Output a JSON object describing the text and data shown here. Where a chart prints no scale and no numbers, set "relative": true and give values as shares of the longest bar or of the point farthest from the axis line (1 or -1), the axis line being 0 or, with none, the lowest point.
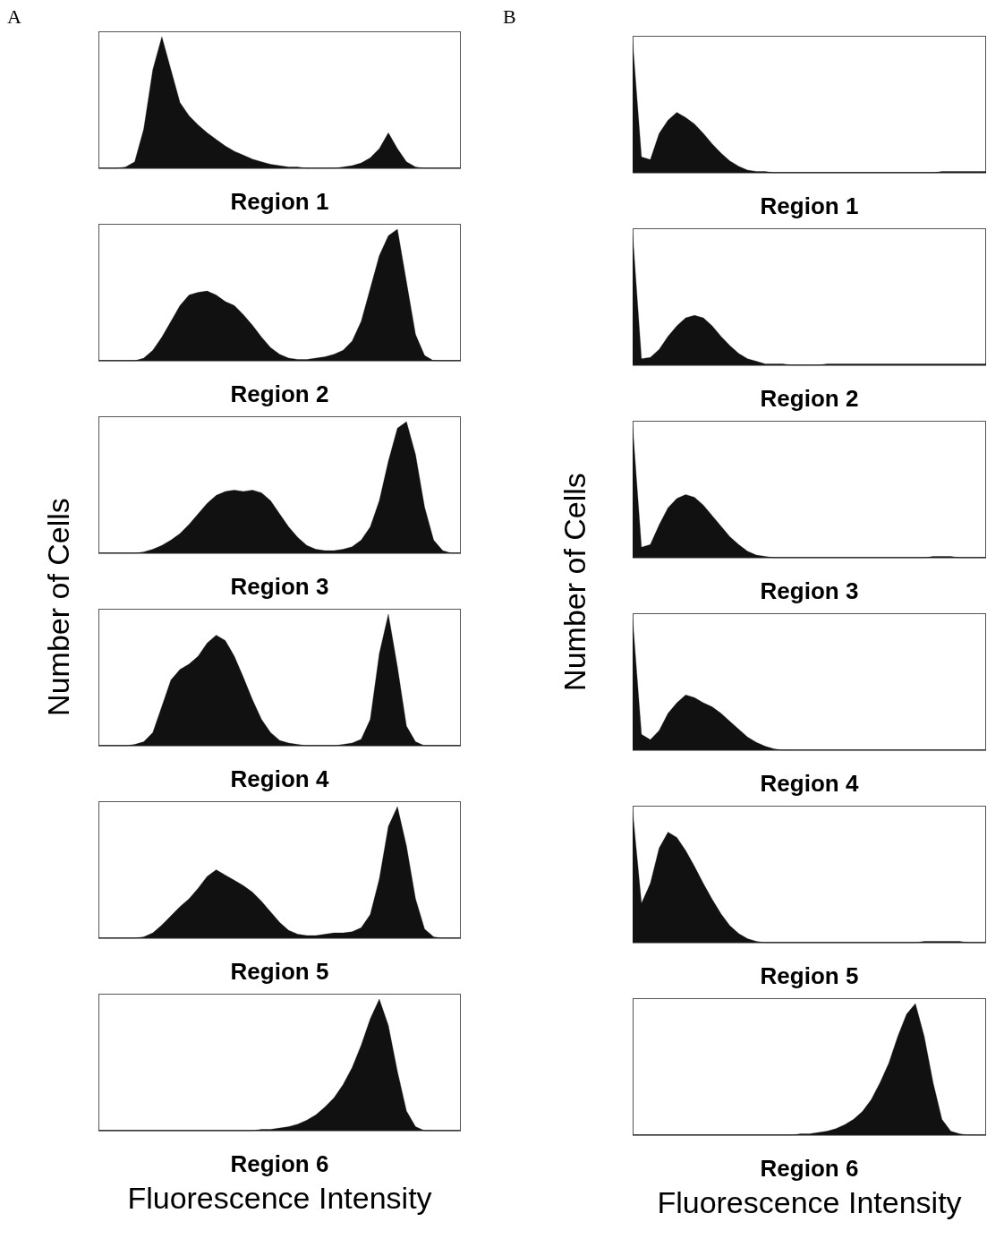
{
  "chart_data": [
    {
      "type": "area",
      "relative": true,
      "title": "Region 1",
      "annotations": [
        "A"
      ],
      "color": "#111111",
      "categories": [
        null,
        null,
        null,
        null,
        null,
        null,
        null,
        null,
        null,
        null,
        null,
        null,
        null,
        null,
        null,
        null,
        null,
        null,
        null,
        null,
        null,
        null,
        null,
        null,
        null,
        null,
        null,
        null,
        null,
        null,
        null,
        null,
        null,
        null,
        null,
        null,
        null,
        null,
        null,
        null,
        null
      ],
      "values": [
        0,
        0,
        0,
        0.01,
        0.05,
        0.3,
        0.75,
        1,
        0.75,
        0.5,
        0.4,
        0.33,
        0.27,
        0.22,
        0.17,
        0.13,
        0.1,
        0.07,
        0.05,
        0.03,
        0.02,
        0.01,
        0.01,
        0,
        0,
        0,
        0,
        0.01,
        0.02,
        0.04,
        0.08,
        0.15,
        0.27,
        0.15,
        0.05,
        0.01,
        0,
        0,
        0,
        0,
        0
      ]
    },
    {
      "type": "area",
      "relative": true,
      "title": "Region 2",
      "color": "#111111",
      "categories": [
        null,
        null,
        null,
        null,
        null,
        null,
        null,
        null,
        null,
        null,
        null,
        null,
        null,
        null,
        null,
        null,
        null,
        null,
        null,
        null,
        null,
        null,
        null,
        null,
        null,
        null,
        null,
        null,
        null,
        null,
        null,
        null,
        null,
        null,
        null,
        null,
        null,
        null,
        null,
        null,
        null
      ],
      "values": [
        0,
        0,
        0,
        0,
        0,
        0.02,
        0.08,
        0.18,
        0.3,
        0.42,
        0.5,
        0.52,
        0.53,
        0.5,
        0.45,
        0.42,
        0.35,
        0.27,
        0.18,
        0.1,
        0.05,
        0.02,
        0.01,
        0.01,
        0.02,
        0.03,
        0.05,
        0.08,
        0.15,
        0.3,
        0.55,
        0.8,
        0.95,
        1,
        0.6,
        0.2,
        0.04,
        0,
        0,
        0,
        0
      ]
    },
    {
      "type": "area",
      "relative": true,
      "title": "Region 3",
      "ylabel": "Number of Cells",
      "color": "#111111",
      "categories": [
        null,
        null,
        null,
        null,
        null,
        null,
        null,
        null,
        null,
        null,
        null,
        null,
        null,
        null,
        null,
        null,
        null,
        null,
        null,
        null,
        null,
        null,
        null,
        null,
        null,
        null,
        null,
        null,
        null,
        null,
        null,
        null,
        null,
        null,
        null,
        null,
        null,
        null,
        null,
        null,
        null
      ],
      "values": [
        0,
        0,
        0,
        0,
        0,
        0.01,
        0.03,
        0.06,
        0.1,
        0.15,
        0.22,
        0.3,
        0.38,
        0.44,
        0.47,
        0.48,
        0.47,
        0.48,
        0.46,
        0.4,
        0.3,
        0.2,
        0.12,
        0.06,
        0.03,
        0.02,
        0.02,
        0.03,
        0.05,
        0.1,
        0.2,
        0.4,
        0.7,
        0.95,
        1,
        0.75,
        0.35,
        0.1,
        0.02,
        0,
        0
      ]
    },
    {
      "type": "area",
      "relative": true,
      "title": "Region 4",
      "color": "#111111",
      "categories": [
        null,
        null,
        null,
        null,
        null,
        null,
        null,
        null,
        null,
        null,
        null,
        null,
        null,
        null,
        null,
        null,
        null,
        null,
        null,
        null,
        null,
        null,
        null,
        null,
        null,
        null,
        null,
        null,
        null,
        null,
        null,
        null,
        null,
        null,
        null,
        null,
        null,
        null,
        null,
        null,
        null
      ],
      "values": [
        0,
        0,
        0,
        0,
        0.01,
        0.03,
        0.1,
        0.3,
        0.5,
        0.58,
        0.62,
        0.68,
        0.78,
        0.84,
        0.8,
        0.68,
        0.52,
        0.35,
        0.2,
        0.1,
        0.04,
        0.02,
        0.01,
        0,
        0,
        0,
        0,
        0.01,
        0.02,
        0.05,
        0.2,
        0.7,
        1,
        0.6,
        0.15,
        0.03,
        0,
        0,
        0,
        0,
        0
      ]
    },
    {
      "type": "area",
      "relative": true,
      "title": "Region 5",
      "color": "#111111",
      "categories": [
        null,
        null,
        null,
        null,
        null,
        null,
        null,
        null,
        null,
        null,
        null,
        null,
        null,
        null,
        null,
        null,
        null,
        null,
        null,
        null,
        null,
        null,
        null,
        null,
        null,
        null,
        null,
        null,
        null,
        null,
        null,
        null,
        null,
        null,
        null,
        null,
        null,
        null,
        null,
        null,
        null
      ],
      "values": [
        0,
        0,
        0,
        0,
        0,
        0.01,
        0.04,
        0.1,
        0.17,
        0.24,
        0.3,
        0.38,
        0.47,
        0.52,
        0.48,
        0.44,
        0.4,
        0.35,
        0.28,
        0.2,
        0.12,
        0.06,
        0.03,
        0.02,
        0.02,
        0.03,
        0.04,
        0.04,
        0.05,
        0.08,
        0.18,
        0.45,
        0.85,
        1,
        0.7,
        0.3,
        0.07,
        0.01,
        0,
        0,
        0
      ]
    },
    {
      "type": "area",
      "relative": true,
      "title": "Region 6",
      "xlabel": "Fluorescence Intensity",
      "color": "#111111",
      "categories": [
        null,
        null,
        null,
        null,
        null,
        null,
        null,
        null,
        null,
        null,
        null,
        null,
        null,
        null,
        null,
        null,
        null,
        null,
        null,
        null,
        null,
        null,
        null,
        null,
        null,
        null,
        null,
        null,
        null,
        null,
        null,
        null,
        null,
        null,
        null,
        null,
        null,
        null,
        null,
        null,
        null
      ],
      "values": [
        0,
        0,
        0,
        0,
        0,
        0,
        0,
        0,
        0,
        0,
        0,
        0,
        0,
        0,
        0,
        0,
        0,
        0,
        0.01,
        0.01,
        0.02,
        0.03,
        0.05,
        0.08,
        0.12,
        0.18,
        0.25,
        0.35,
        0.48,
        0.65,
        0.85,
        1,
        0.8,
        0.45,
        0.15,
        0.03,
        0,
        0,
        0,
        0,
        0
      ]
    },
    {
      "type": "area",
      "relative": true,
      "title": "Region 1",
      "annotations": [
        "B"
      ],
      "color": "#111111",
      "categories": [
        null,
        null,
        null,
        null,
        null,
        null,
        null,
        null,
        null,
        null,
        null,
        null,
        null,
        null,
        null,
        null,
        null,
        null,
        null,
        null,
        null,
        null,
        null,
        null,
        null,
        null,
        null,
        null,
        null,
        null,
        null,
        null,
        null,
        null,
        null,
        null,
        null,
        null,
        null,
        null,
        null
      ],
      "values": [
        1,
        0.12,
        0.1,
        0.3,
        0.4,
        0.46,
        0.42,
        0.37,
        0.3,
        0.22,
        0.15,
        0.09,
        0.05,
        0.02,
        0.01,
        0.01,
        0,
        0,
        0,
        0,
        0,
        0,
        0,
        0,
        0,
        0,
        0,
        0,
        0,
        0,
        0,
        0,
        0,
        0,
        0,
        0.01,
        0.01,
        0.01,
        0.01,
        0.01,
        0.01
      ]
    },
    {
      "type": "area",
      "relative": true,
      "title": "Region 2",
      "color": "#111111",
      "categories": [
        null,
        null,
        null,
        null,
        null,
        null,
        null,
        null,
        null,
        null,
        null,
        null,
        null,
        null,
        null,
        null,
        null,
        null,
        null,
        null,
        null,
        null,
        null,
        null,
        null,
        null,
        null,
        null,
        null,
        null,
        null,
        null,
        null,
        null,
        null,
        null,
        null,
        null,
        null,
        null,
        null
      ],
      "values": [
        1,
        0.05,
        0.06,
        0.12,
        0.22,
        0.3,
        0.36,
        0.38,
        0.36,
        0.3,
        0.22,
        0.15,
        0.09,
        0.05,
        0.03,
        0.01,
        0.01,
        0.01,
        0,
        0,
        0,
        0,
        0.01,
        0.01,
        0.01,
        0.01,
        0.01,
        0.01,
        0.01,
        0.01,
        0.01,
        0.01,
        0.01,
        0.01,
        0.01,
        0.01,
        0.01,
        0.01,
        0.01,
        0.01,
        0.01
      ]
    },
    {
      "type": "area",
      "relative": true,
      "title": "Region 3",
      "ylabel": "Number of Cells",
      "color": "#111111",
      "categories": [
        null,
        null,
        null,
        null,
        null,
        null,
        null,
        null,
        null,
        null,
        null,
        null,
        null,
        null,
        null,
        null,
        null,
        null,
        null,
        null,
        null,
        null,
        null,
        null,
        null,
        null,
        null,
        null,
        null,
        null,
        null,
        null,
        null,
        null,
        null,
        null,
        null,
        null,
        null,
        null,
        null
      ],
      "values": [
        1,
        0.08,
        0.1,
        0.25,
        0.38,
        0.45,
        0.48,
        0.46,
        0.4,
        0.32,
        0.24,
        0.16,
        0.1,
        0.05,
        0.02,
        0.01,
        0,
        0,
        0,
        0,
        0,
        0,
        0,
        0,
        0,
        0,
        0,
        0,
        0,
        0,
        0,
        0,
        0,
        0,
        0.01,
        0.01,
        0.01,
        0,
        0,
        0,
        0
      ]
    },
    {
      "type": "area",
      "relative": true,
      "title": "Region 4",
      "color": "#111111",
      "categories": [
        null,
        null,
        null,
        null,
        null,
        null,
        null,
        null,
        null,
        null,
        null,
        null,
        null,
        null,
        null,
        null,
        null,
        null,
        null,
        null,
        null,
        null,
        null,
        null,
        null,
        null,
        null,
        null,
        null,
        null,
        null,
        null,
        null,
        null,
        null,
        null,
        null,
        null,
        null,
        null,
        null
      ],
      "values": [
        1,
        0.12,
        0.08,
        0.15,
        0.28,
        0.36,
        0.42,
        0.4,
        0.36,
        0.33,
        0.28,
        0.22,
        0.16,
        0.1,
        0.06,
        0.03,
        0.01,
        0,
        0,
        0,
        0,
        0,
        0,
        0,
        0,
        0,
        0,
        0,
        0,
        0,
        0,
        0,
        0,
        0,
        0,
        0,
        0,
        0,
        0,
        0,
        0
      ]
    },
    {
      "type": "area",
      "relative": true,
      "title": "Region 5",
      "color": "#111111",
      "categories": [
        null,
        null,
        null,
        null,
        null,
        null,
        null,
        null,
        null,
        null,
        null,
        null,
        null,
        null,
        null,
        null,
        null,
        null,
        null,
        null,
        null,
        null,
        null,
        null,
        null,
        null,
        null,
        null,
        null,
        null,
        null,
        null,
        null,
        null,
        null,
        null,
        null,
        null,
        null,
        null,
        null
      ],
      "values": [
        1,
        0.3,
        0.45,
        0.72,
        0.84,
        0.8,
        0.7,
        0.58,
        0.45,
        0.33,
        0.22,
        0.13,
        0.07,
        0.03,
        0.01,
        0,
        0,
        0,
        0,
        0,
        0,
        0,
        0,
        0,
        0,
        0,
        0,
        0,
        0,
        0,
        0,
        0,
        0,
        0.01,
        0.01,
        0.01,
        0.01,
        0.01,
        0,
        0,
        0
      ]
    },
    {
      "type": "area",
      "relative": true,
      "title": "Region 6",
      "xlabel": "Fluorescence Intensity",
      "color": "#111111",
      "categories": [
        null,
        null,
        null,
        null,
        null,
        null,
        null,
        null,
        null,
        null,
        null,
        null,
        null,
        null,
        null,
        null,
        null,
        null,
        null,
        null,
        null,
        null,
        null,
        null,
        null,
        null,
        null,
        null,
        null,
        null,
        null,
        null,
        null,
        null,
        null,
        null,
        null,
        null,
        null,
        null,
        null
      ],
      "values": [
        0,
        0,
        0,
        0,
        0,
        0,
        0,
        0,
        0,
        0,
        0,
        0,
        0,
        0,
        0,
        0,
        0,
        0,
        0,
        0.01,
        0.01,
        0.02,
        0.03,
        0.05,
        0.08,
        0.12,
        0.18,
        0.27,
        0.4,
        0.55,
        0.75,
        0.92,
        1,
        0.75,
        0.4,
        0.12,
        0.03,
        0.01,
        0,
        0,
        0
      ]
    }
  ]
}
